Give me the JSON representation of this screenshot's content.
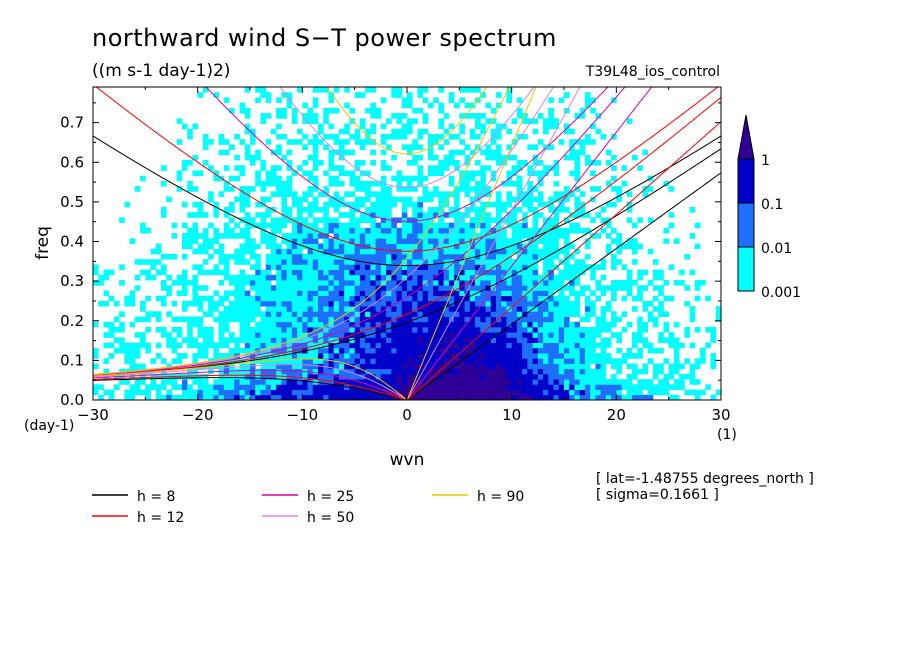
{
  "chart_data": {
    "type": "heatmap",
    "title": "northward wind S−T power spectrum",
    "units": "((m s-1 day-1)2)",
    "experiment": "T39L48_ios_control",
    "xlabel": "wvn",
    "ylabel": "freq",
    "xlim": [
      -30,
      30
    ],
    "ylim": [
      0,
      0.79
    ],
    "x_ticks": [
      -30,
      -20,
      -10,
      0,
      10,
      20,
      30
    ],
    "x_tick_labels": [
      "−30",
      "−20",
      "−10",
      "0",
      "10",
      "20",
      "30"
    ],
    "y_ticks": [
      0,
      0.1,
      0.2,
      0.3,
      0.4,
      0.5,
      0.6,
      0.7
    ],
    "y_tick_labels": [
      "0.0",
      "0.1",
      "0.2",
      "0.3",
      "0.4",
      "0.5",
      "0.6",
      "0.7"
    ],
    "x_unit": "(1)",
    "y_unit": "(day-1)",
    "colorbar": {
      "levels": [
        0.001,
        0.01,
        0.1,
        1
      ],
      "level_labels": [
        "0.001",
        "0.01",
        "0.1",
        "1"
      ],
      "colors": [
        "#00ffff",
        "#1e6fff",
        "#0000c8",
        "#2e0096"
      ]
    },
    "annotations": [
      "[ lat=-1.48755 degrees_north ]",
      "[ sigma=0.1661 ]"
    ],
    "dispersion_curves": [
      {
        "h_label": "h =  8",
        "h": 8,
        "color": "#000000"
      },
      {
        "h_label": "h = 12",
        "h": 12,
        "color": "#ff0000"
      },
      {
        "h_label": "h = 25",
        "h": 25,
        "color": "#dd00aa"
      },
      {
        "h_label": "h = 50",
        "h": 50,
        "color": "#e080e0"
      },
      {
        "h_label": "h = 90",
        "h": 90,
        "color": "#e8c800"
      }
    ]
  }
}
